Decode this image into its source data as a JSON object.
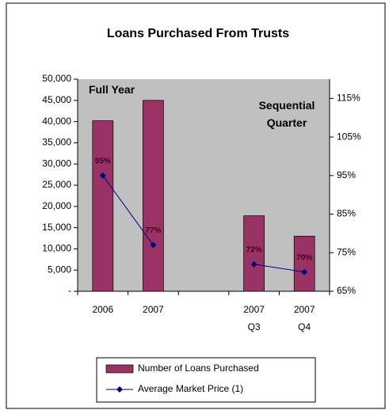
{
  "chart_data": {
    "type": "bar",
    "title": "Loans Purchased From Trusts",
    "categories": [
      "2006",
      "2007",
      null,
      "2007\nQ3",
      "2007\nQ4"
    ],
    "series": [
      {
        "name": "Number of Loans Purchased",
        "type": "bar",
        "color": "#993366",
        "values": [
          40200,
          45000,
          null,
          17800,
          13000
        ]
      },
      {
        "name": "Average Market Price (1)",
        "type": "line",
        "axis": "y2",
        "color": "#000080",
        "values": [
          95,
          77,
          null,
          72,
          70
        ],
        "value_labels": [
          "95%",
          "77%",
          null,
          "72%",
          "70%"
        ]
      }
    ],
    "ylim": [
      0,
      50000
    ],
    "yticks": [
      {
        "value": 0,
        "label": "-"
      },
      {
        "value": 5000,
        "label": "5,000"
      },
      {
        "value": 10000,
        "label": "10,000"
      },
      {
        "value": 15000,
        "label": "15,000"
      },
      {
        "value": 20000,
        "label": "20,000"
      },
      {
        "value": 25000,
        "label": "25,000"
      },
      {
        "value": 30000,
        "label": "30,000"
      },
      {
        "value": 35000,
        "label": "35,000"
      },
      {
        "value": 40000,
        "label": "40,000"
      },
      {
        "value": 45000,
        "label": "45,000"
      },
      {
        "value": 50000,
        "label": "50,000"
      }
    ],
    "y2lim": [
      65,
      120
    ],
    "y2ticks": [
      {
        "value": 65,
        "label": "65%"
      },
      {
        "value": 75,
        "label": "75%"
      },
      {
        "value": 85,
        "label": "85%"
      },
      {
        "value": 95,
        "label": "95%"
      },
      {
        "value": 105,
        "label": "105%"
      },
      {
        "value": 115,
        "label": "115%"
      }
    ],
    "annotations": [
      "Full Year",
      "Sequential\nQuarter"
    ],
    "legend": "bottom"
  }
}
